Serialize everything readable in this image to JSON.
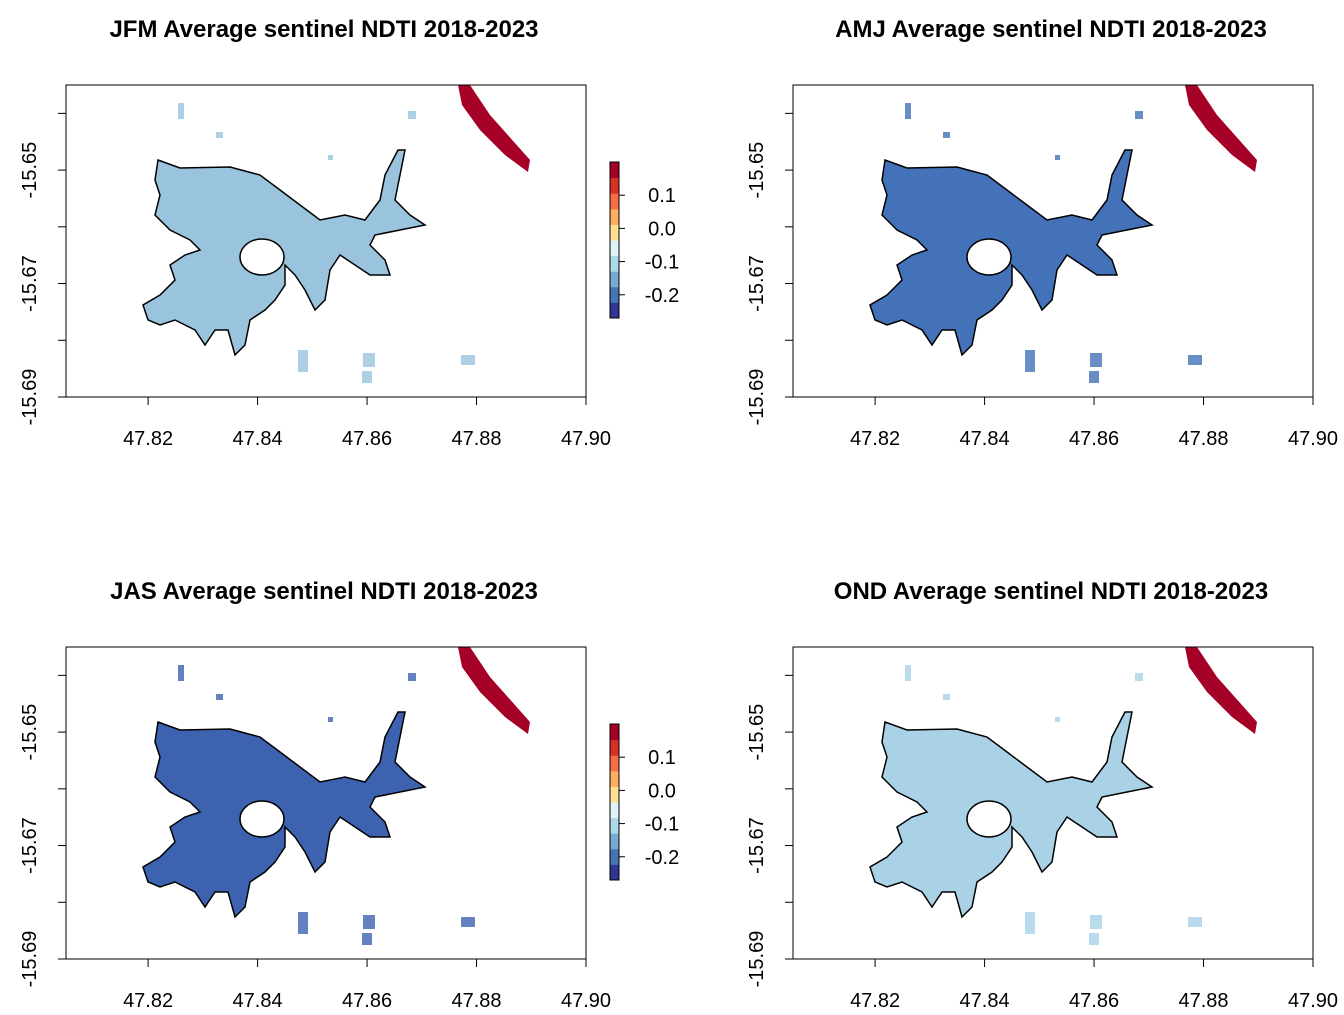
{
  "chart_data": [
    {
      "type": "raster",
      "title": "JFM Average sentinel NDTI 2018-2023",
      "xlim": [
        47.805,
        47.9
      ],
      "ylim": [
        -15.69,
        -15.635
      ],
      "xticks": [
        47.82,
        47.84,
        47.86,
        47.88,
        {
          "value": 47.9,
          "label": "47.90"
        }
      ],
      "yticks": [
        -15.65,
        -15.67,
        -15.69
      ],
      "yminor_ticks": [
        -15.64,
        -15.66,
        -15.68
      ],
      "fill_color": "#9ac4de",
      "colorbar": {
        "zlim": [
          -0.27,
          0.2
        ],
        "ticks": [
          0.1,
          {
            "value": 0,
            "label": "0.0"
          },
          -0.1,
          -0.2
        ],
        "colors": [
          "#313695",
          "#4575b4",
          "#74add1",
          "#abd9e9",
          "#e0f3f8",
          "#fee090",
          "#fdae61",
          "#f46d43",
          "#d73027",
          "#a50026"
        ]
      }
    },
    {
      "type": "raster",
      "title": "AMJ Average sentinel NDTI 2018-2023",
      "xlim": [
        47.805,
        47.9
      ],
      "ylim": [
        -15.69,
        -15.635
      ],
      "xticks": [
        47.82,
        47.84,
        47.86,
        47.88,
        {
          "value": 47.9,
          "label": "47.90"
        }
      ],
      "yticks": [
        -15.65,
        -15.67,
        -15.69
      ],
      "yminor_ticks": [
        -15.64,
        -15.66,
        -15.68
      ],
      "fill_color": "#4472b8"
    },
    {
      "type": "raster",
      "title": "JAS Average sentinel NDTI 2018-2023",
      "xlim": [
        47.805,
        47.9
      ],
      "ylim": [
        -15.69,
        -15.635
      ],
      "xticks": [
        47.82,
        47.84,
        47.86,
        47.88,
        {
          "value": 47.9,
          "label": "47.90"
        }
      ],
      "yticks": [
        -15.65,
        -15.67,
        -15.69
      ],
      "yminor_ticks": [
        -15.64,
        -15.66,
        -15.68
      ],
      "fill_color": "#3d63b0",
      "colorbar": {
        "zlim": [
          -0.27,
          0.2
        ],
        "ticks": [
          0.1,
          {
            "value": 0,
            "label": "0.0"
          },
          -0.1,
          -0.2
        ],
        "colors": [
          "#313695",
          "#4575b4",
          "#74add1",
          "#abd9e9",
          "#e0f3f8",
          "#fee090",
          "#fdae61",
          "#f46d43",
          "#d73027",
          "#a50026"
        ]
      }
    },
    {
      "type": "raster",
      "title": "OND Average sentinel NDTI 2018-2023",
      "xlim": [
        47.805,
        47.9
      ],
      "ylim": [
        -15.69,
        -15.635
      ],
      "xticks": [
        47.82,
        47.84,
        47.86,
        47.88,
        {
          "value": 47.9,
          "label": "47.90"
        }
      ],
      "yticks": [
        -15.65,
        -15.67,
        -15.69
      ],
      "yminor_ticks": [
        -15.64,
        -15.66,
        -15.68
      ],
      "fill_color": "#a9d2e6"
    }
  ]
}
